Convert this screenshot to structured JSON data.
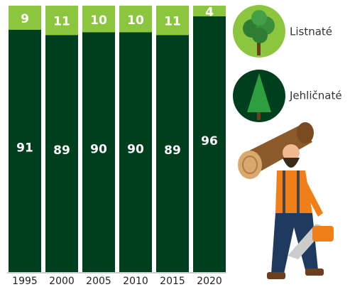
{
  "chart_data": {
    "type": "stacked_bar",
    "categories": [
      "1995",
      "2000",
      "2005",
      "2010",
      "2015",
      "2020"
    ],
    "series": [
      {
        "name": "Jehličnaté",
        "color": "#003f1e",
        "values": [
          91,
          89,
          90,
          90,
          89,
          96
        ]
      },
      {
        "name": "Listnaté",
        "color": "#8cc63f",
        "values": [
          9,
          11,
          10,
          10,
          11,
          4
        ]
      }
    ],
    "ylim": [
      0,
      100
    ]
  }
}
